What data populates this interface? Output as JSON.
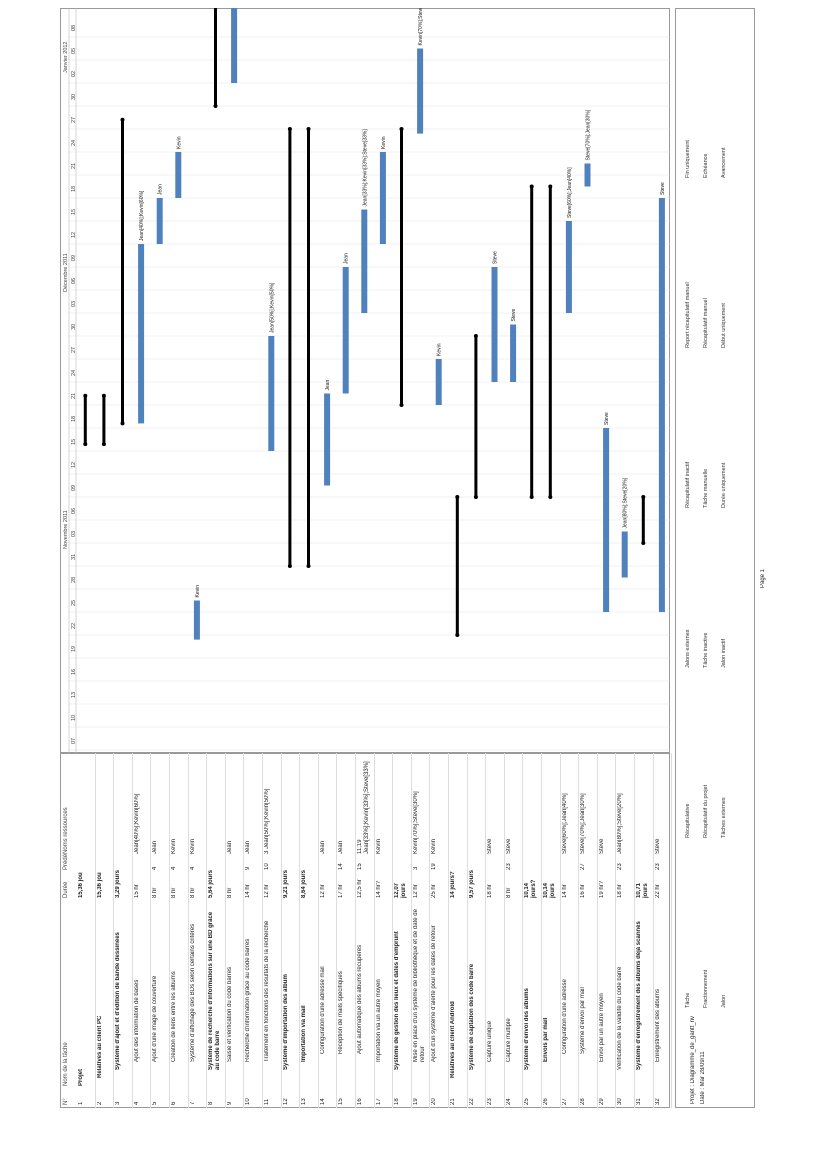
{
  "columns": {
    "id": "N°",
    "name": "Nom de la tâche",
    "duration": "Durée",
    "pred": "Prédé",
    "res": "Noms ressources"
  },
  "timeline": {
    "months": [
      "Novembre 2011",
      "Décembre 2011",
      "Janvier 2012"
    ],
    "days": [
      "07",
      "10",
      "13",
      "16",
      "19",
      "22",
      "25",
      "28",
      "31",
      "03",
      "06",
      "09",
      "12",
      "15",
      "18",
      "21",
      "24",
      "27",
      "30",
      "03",
      "06",
      "09",
      "12",
      "15",
      "18",
      "21",
      "24",
      "27",
      "30",
      "02",
      "05",
      "08"
    ]
  },
  "tasks": [
    {
      "id": "1",
      "name": "Projet",
      "duration": "15,36 jou",
      "pred": "",
      "res": "",
      "bold": true,
      "level": 0
    },
    {
      "id": "2",
      "name": "Relatives au client PC",
      "duration": "15,36 jou",
      "pred": "",
      "res": "",
      "bold": true,
      "level": 1
    },
    {
      "id": "3",
      "name": "Système d'ajout et d'édition de bande dessinées",
      "duration": "3,29 jours",
      "pred": "",
      "res": "",
      "bold": true,
      "level": 2
    },
    {
      "id": "4",
      "name": "Ajout des information de bases",
      "duration": "15 hr",
      "pred": "",
      "res": "Jean[40%];Kevin[60%]",
      "bold": false,
      "level": 3
    },
    {
      "id": "5",
      "name": "Ajout d'une image de couverture",
      "duration": "8 hr",
      "pred": "4",
      "res": "Jean",
      "bold": false,
      "level": 3
    },
    {
      "id": "6",
      "name": "Création de liens entre les albums",
      "duration": "8 hr",
      "pred": "4",
      "res": "Kevin",
      "bold": false,
      "level": 3
    },
    {
      "id": "7",
      "name": "Système d'affichage des BDs selon certains critères",
      "duration": "8 hr",
      "pred": "4",
      "res": "Kevin",
      "bold": false,
      "level": 3
    },
    {
      "id": "8",
      "name": "Système de recherche d'informations sur une BD grâce au code barre",
      "duration": "5,64 jours",
      "pred": "",
      "res": "",
      "bold": true,
      "level": 2
    },
    {
      "id": "9",
      "name": "Saisie et vérification du code barres",
      "duration": "8 hr",
      "pred": "",
      "res": "Jean",
      "bold": false,
      "level": 3
    },
    {
      "id": "10",
      "name": "Recherche d'information grâce au code barres",
      "duration": "14 hr",
      "pred": "9",
      "res": "Jean",
      "bold": false,
      "level": 3
    },
    {
      "id": "11",
      "name": "Traitement en fonctions des résultats de la recherche",
      "duration": "12 hr",
      "pred": "10",
      "res": "3 Jean[50%];Kevin[50%]",
      "bold": false,
      "level": 3
    },
    {
      "id": "12",
      "name": "Système d'importation des album",
      "duration": "9,21 jours",
      "pred": "",
      "res": "",
      "bold": true,
      "level": 2
    },
    {
      "id": "13",
      "name": "Importation via mail",
      "duration": "8,64 jours",
      "pred": "",
      "res": "",
      "bold": true,
      "level": 3
    },
    {
      "id": "14",
      "name": "Configuration d'une adresse mail",
      "duration": "12 hr",
      "pred": "",
      "res": "Jean",
      "bold": false,
      "level": 4
    },
    {
      "id": "15",
      "name": "Réception de mails spécifiques",
      "duration": "17 hr",
      "pred": "14",
      "res": "Jean",
      "bold": false,
      "level": 4
    },
    {
      "id": "16",
      "name": "Ajout automatique des albums récupérés",
      "duration": "12,5 hr",
      "pred": "15",
      "res": "11;19 Jean[33%];Kevin[33%];Steve[33%]",
      "bold": false,
      "level": 4
    },
    {
      "id": "17",
      "name": "Importation via un autre moyen",
      "duration": "14 hr?",
      "pred": "",
      "res": "Kevin",
      "bold": false,
      "level": 3
    },
    {
      "id": "18",
      "name": "Système de gestion des lieux et dates d'emprunt",
      "duration": "12,07 jours",
      "pred": "",
      "res": "",
      "bold": true,
      "level": 2
    },
    {
      "id": "19",
      "name": "Mise en place d'un système de bibliothèque et de date de retour",
      "duration": "12 hr",
      "pred": "3",
      "res": "Kevin[70%];Steve[30%]",
      "bold": false,
      "level": 3
    },
    {
      "id": "20",
      "name": "Ajout d'un système d'alerte pour les dates de retour",
      "duration": "25 hr",
      "pred": "19",
      "res": "Kevin",
      "bold": false,
      "level": 3
    },
    {
      "id": "21",
      "name": "Relatives au client Android",
      "duration": "14 jours?",
      "pred": "",
      "res": "",
      "bold": true,
      "level": 1
    },
    {
      "id": "22",
      "name": "Système de captation des code barre",
      "duration": "9,57 jours",
      "pred": "",
      "res": "",
      "bold": true,
      "level": 2
    },
    {
      "id": "23",
      "name": "Capture unique",
      "duration": "18 hr",
      "pred": "",
      "res": "Steve",
      "bold": false,
      "level": 3
    },
    {
      "id": "24",
      "name": "Capture multiple",
      "duration": "8 hr",
      "pred": "23",
      "res": "Steve",
      "bold": false,
      "level": 3
    },
    {
      "id": "25",
      "name": "Système d'envoi des albums",
      "duration": "10,14 jours?",
      "pred": "",
      "res": "",
      "bold": true,
      "level": 2
    },
    {
      "id": "26",
      "name": "Envois par mail",
      "duration": "10,14 jours",
      "pred": "",
      "res": "",
      "bold": true,
      "level": 3
    },
    {
      "id": "27",
      "name": "Configuration d'une adresse",
      "duration": "14 hr",
      "pred": "",
      "res": "Steve[60%];Jean[40%]",
      "bold": false,
      "level": 4
    },
    {
      "id": "28",
      "name": "Système d'envoi par mail",
      "duration": "16 hr",
      "pred": "27",
      "res": "Steve[70%];Jean[30%]",
      "bold": false,
      "level": 4
    },
    {
      "id": "29",
      "name": "Envoi par un autre moyen",
      "duration": "19 hr?",
      "pred": "",
      "res": "Steve",
      "bold": false,
      "level": 3
    },
    {
      "id": "30",
      "name": "Vérification de la validité du code barre",
      "duration": "18 hr",
      "pred": "23",
      "res": "Jean[80%];Steve[20%]",
      "bold": false,
      "level": 2
    },
    {
      "id": "31",
      "name": "Système d'enregistrement des albums déjà scannés",
      "duration": "10,71 jours",
      "pred": "",
      "res": "",
      "bold": true,
      "level": 2
    },
    {
      "id": "32",
      "name": "Enregistrement des albums",
      "duration": "22 hr",
      "pred": "23",
      "res": "Steve",
      "bold": false,
      "level": 3
    }
  ],
  "bars": [
    {
      "row": 1,
      "type": "summary",
      "start": 13.3,
      "end": 15.4,
      "label": ""
    },
    {
      "row": 2,
      "type": "summary",
      "start": 13.3,
      "end": 15.4,
      "label": ""
    },
    {
      "row": 3,
      "type": "summary",
      "start": 14.2,
      "end": 27.4,
      "label": ""
    },
    {
      "row": 4,
      "type": "task",
      "start": 14.2,
      "end": 22.0,
      "label": "Jean[40%];Kevin[60%]"
    },
    {
      "row": 5,
      "type": "task",
      "start": 22.0,
      "end": 24.0,
      "label": "Jean"
    },
    {
      "row": 6,
      "type": "task",
      "start": 24.0,
      "end": 26.0,
      "label": "Kevin"
    },
    {
      "row": 7,
      "type": "task",
      "start": 4.8,
      "end": 6.5,
      "label": "Kevin"
    },
    {
      "row": 8,
      "type": "summary",
      "start": 28.0,
      "end": 40.5,
      "label": ""
    },
    {
      "row": 9,
      "type": "task",
      "start": 29.0,
      "end": 32.5,
      "label": "Jean"
    },
    {
      "row": 10,
      "type": "task",
      "start": 32.5,
      "end": 37.0,
      "label": "Jean"
    },
    {
      "row": 11,
      "type": "task",
      "start": 13.0,
      "end": 18.0,
      "label": "Jean[50%];Kevin[50%]"
    },
    {
      "row": 12,
      "type": "summary",
      "start": 27.0,
      "end": 8.0,
      "label": ""
    },
    {
      "row": 13,
      "type": "summary",
      "start": 27.0,
      "end": 8.0,
      "label": ""
    },
    {
      "row": 14,
      "type": "task",
      "start": 11.5,
      "end": 15.5,
      "label": "Jean"
    },
    {
      "row": 15,
      "type": "task",
      "start": 15.5,
      "end": 21.0,
      "label": "Jean"
    },
    {
      "row": 16,
      "type": "task",
      "start": 19.0,
      "end": 23.5,
      "label": "Jean[33%];Kevin[33%];Steve[33%]"
    },
    {
      "row": 17,
      "type": "task",
      "start": 22.0,
      "end": 26.0,
      "label": "Kevin"
    },
    {
      "row": 18,
      "type": "summary",
      "start": 27.0,
      "end": 15.0,
      "label": ""
    },
    {
      "row": 19,
      "type": "task",
      "start": 26.8,
      "end": 30.5,
      "label": "Kevin[70%];Steve[30%]"
    },
    {
      "row": 20,
      "type": "task",
      "start": 15.0,
      "end": 17.0,
      "label": "Kevin"
    },
    {
      "row": 21,
      "type": "summary",
      "start": 11.0,
      "end": 5.0,
      "label": ""
    },
    {
      "row": 22,
      "type": "summary",
      "start": 11.0,
      "end": 18.0,
      "label": ""
    },
    {
      "row": 23,
      "type": "task",
      "start": 16.0,
      "end": 21.0,
      "label": "Steve"
    },
    {
      "row": 24,
      "type": "task",
      "start": 16.0,
      "end": 18.5,
      "label": "Steve"
    },
    {
      "row": 25,
      "type": "summary",
      "start": 11.0,
      "end": 24.5,
      "label": ""
    },
    {
      "row": 26,
      "type": "summary",
      "start": 11.0,
      "end": 24.5,
      "label": ""
    },
    {
      "row": 27,
      "type": "task",
      "start": 19.0,
      "end": 23.0,
      "label": "Steve[60%];Jean[40%]"
    },
    {
      "row": 28,
      "type": "task",
      "start": 24.5,
      "end": 25.5,
      "label": "Steve[70%];Jean[30%]"
    },
    {
      "row": 29,
      "type": "task",
      "start": 6.0,
      "end": 14.0,
      "label": "Steve"
    },
    {
      "row": 30,
      "type": "task",
      "start": 7.5,
      "end": 9.5,
      "label": "Jean[80%];Steve[20%]"
    },
    {
      "row": 31,
      "type": "summary",
      "start": 11.0,
      "end": 9.0,
      "label": ""
    },
    {
      "row": 32,
      "type": "task",
      "start": 24.0,
      "end": 6.0,
      "label": "Steve"
    }
  ],
  "footer": {
    "project": "Projet : Diagramme_de_gantt_nv",
    "date": "Date : Mar 28/09/11",
    "page": "Page 1",
    "legend": [
      [
        "Tâche",
        "Récapitulative",
        "Jalons externes",
        "Récapitulatif inactif",
        "Report récapitulatif manuel",
        "Fin uniquement"
      ],
      [
        "Fractionnement",
        "Récapitulatif du projet",
        "Tâche inactive",
        "Tâche manuelle",
        "Récapitulatif manuel",
        "Échéance"
      ],
      [
        "Jalon",
        "Tâches externes",
        "Jalon inactif",
        "Durée uniquement",
        "Début uniquement",
        "Avancement"
      ]
    ]
  },
  "colors": {
    "bar": "#4f81bd",
    "summary": "#000000",
    "link": "#4f6fa8",
    "accent": "#3b9a8c"
  }
}
